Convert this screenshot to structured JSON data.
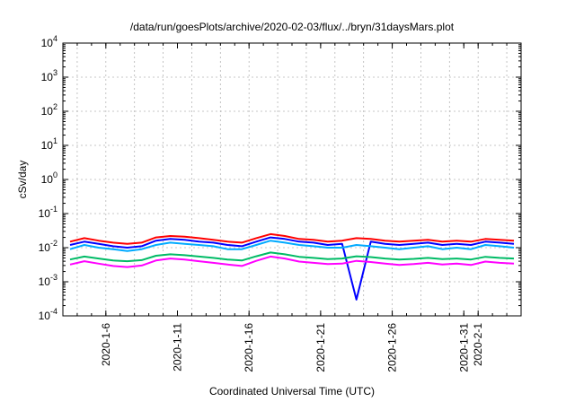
{
  "chart_data": {
    "type": "line",
    "title": "/data/run/goesPlots/archive/2020-02-03/flux/../bryn/31daysMars.plot",
    "xlabel": "Coordinated Universal Time (UTC)",
    "ylabel": "cSv/day",
    "yscale": "log",
    "ylim": [
      0.0001,
      10000
    ],
    "xlim": [
      "2020-01-03",
      "2020-02-04"
    ],
    "grid": true,
    "x_ticks": [
      "2020-1-6",
      "2020-1-11",
      "2020-1-16",
      "2020-1-21",
      "2020-1-26",
      "2020-1-31",
      "2020-2-1"
    ],
    "y_ticks": [
      {
        "base": "10",
        "exp": "-4"
      },
      {
        "base": "10",
        "exp": "-3"
      },
      {
        "base": "10",
        "exp": "-2"
      },
      {
        "base": "10",
        "exp": "-1"
      },
      {
        "base": "10",
        "exp": "0"
      },
      {
        "base": "10",
        "exp": "1"
      },
      {
        "base": "10",
        "exp": "2"
      },
      {
        "base": "10",
        "exp": "3"
      },
      {
        "base": "10",
        "exp": "4"
      }
    ],
    "x": [
      "2020-01-03",
      "2020-01-04",
      "2020-01-05",
      "2020-01-06",
      "2020-01-07",
      "2020-01-08",
      "2020-01-09",
      "2020-01-10",
      "2020-01-11",
      "2020-01-12",
      "2020-01-13",
      "2020-01-14",
      "2020-01-15",
      "2020-01-16",
      "2020-01-17",
      "2020-01-18",
      "2020-01-19",
      "2020-01-20",
      "2020-01-21",
      "2020-01-22",
      "2020-01-23",
      "2020-01-24",
      "2020-01-25",
      "2020-01-26",
      "2020-01-27",
      "2020-01-28",
      "2020-01-29",
      "2020-01-30",
      "2020-01-31",
      "2020-02-01",
      "2020-02-02",
      "2020-02-03"
    ],
    "series": [
      {
        "color": "#ff0000",
        "values": [
          0.015,
          0.019,
          0.016,
          0.014,
          0.013,
          0.014,
          0.02,
          0.022,
          0.021,
          0.019,
          0.017,
          0.015,
          0.014,
          0.019,
          0.025,
          0.022,
          0.018,
          0.017,
          0.015,
          0.016,
          0.019,
          0.018,
          0.016,
          0.015,
          0.016,
          0.017,
          0.015,
          0.016,
          0.015,
          0.018,
          0.017,
          0.016
        ]
      },
      {
        "color": "#0000ff",
        "values": [
          0.012,
          0.015,
          0.013,
          0.011,
          0.01,
          0.011,
          0.016,
          0.018,
          0.017,
          0.015,
          0.014,
          0.012,
          0.011,
          0.015,
          0.02,
          0.018,
          0.015,
          0.014,
          0.012,
          0.013,
          0.0003,
          0.015,
          0.013,
          0.012,
          0.013,
          0.014,
          0.012,
          0.013,
          0.012,
          0.015,
          0.014,
          0.013
        ]
      },
      {
        "color": "#00aaff",
        "values": [
          0.009,
          0.012,
          0.01,
          0.009,
          0.008,
          0.009,
          0.012,
          0.014,
          0.013,
          0.012,
          0.011,
          0.009,
          0.009,
          0.012,
          0.016,
          0.014,
          0.012,
          0.011,
          0.01,
          0.01,
          0.012,
          0.011,
          0.01,
          0.009,
          0.01,
          0.011,
          0.009,
          0.01,
          0.009,
          0.012,
          0.011,
          0.01
        ]
      },
      {
        "color": "#00bb66",
        "values": [
          0.0045,
          0.0055,
          0.0048,
          0.0042,
          0.004,
          0.0043,
          0.0058,
          0.0064,
          0.006,
          0.0055,
          0.005,
          0.0045,
          0.0042,
          0.0056,
          0.0072,
          0.0064,
          0.0054,
          0.005,
          0.0046,
          0.0048,
          0.0056,
          0.0053,
          0.0048,
          0.0045,
          0.0047,
          0.005,
          0.0046,
          0.0048,
          0.0045,
          0.0054,
          0.005,
          0.0048
        ]
      },
      {
        "color": "#ff00ff",
        "values": [
          0.0032,
          0.004,
          0.0034,
          0.0029,
          0.0027,
          0.003,
          0.0042,
          0.0048,
          0.0045,
          0.004,
          0.0036,
          0.0032,
          0.0029,
          0.0041,
          0.0055,
          0.0048,
          0.0039,
          0.0036,
          0.0033,
          0.0034,
          0.0041,
          0.0038,
          0.0034,
          0.0031,
          0.0033,
          0.0036,
          0.0032,
          0.0034,
          0.0031,
          0.0039,
          0.0036,
          0.0034
        ]
      }
    ]
  }
}
